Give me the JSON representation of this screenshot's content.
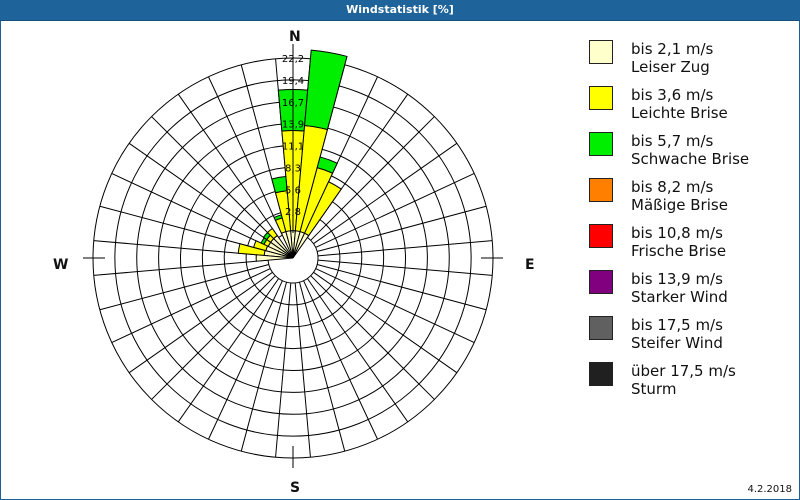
{
  "window": {
    "title": "Windstatistik [%]"
  },
  "compass": {
    "north": "N",
    "east": "E",
    "south": "S",
    "west": "W"
  },
  "footer": {
    "date": "4.2.2018"
  },
  "legend": {
    "items": [
      {
        "range": "bis 2,1 m/s",
        "name": "Leiser Zug",
        "color": "#ffffcc"
      },
      {
        "range": "bis 3,6 m/s",
        "name": "Leichte Brise",
        "color": "#ffff00"
      },
      {
        "range": "bis 5,7 m/s",
        "name": "Schwache Brise",
        "color": "#00ee00"
      },
      {
        "range": "bis 8,2 m/s",
        "name": "Mäßige Brise",
        "color": "#ff8000"
      },
      {
        "range": "bis 10,8 m/s",
        "name": "Frische Brise",
        "color": "#ff0000"
      },
      {
        "range": "bis 13,9 m/s",
        "name": "Starker Wind",
        "color": "#800080"
      },
      {
        "range": "bis 17,5 m/s",
        "name": "Steifer Wind",
        "color": "#606060"
      },
      {
        "range": "über 17,5 m/s",
        "name": "Sturm",
        "color": "#202020"
      }
    ]
  },
  "chart_data": {
    "type": "wind-rose (polar stacked bar)",
    "title": "Windstatistik [%]",
    "unit": "%",
    "radial_ticks": [
      2.8,
      5.6,
      8.3,
      11.1,
      13.9,
      16.7,
      19.4,
      22.2
    ],
    "radial_tick_labels": [
      "2,8",
      "5,6",
      "8,3",
      "11,1",
      "13,9",
      "16,7",
      "19,4",
      "22,2"
    ],
    "rmax": 22.2,
    "sector_width_deg": 10,
    "directions_deg_note": "direction angle measured clockwise from North; sector centered on angle",
    "series_names": [
      "bis 2,1 m/s",
      "bis 3,6 m/s",
      "bis 5,7 m/s",
      "bis 8,2 m/s",
      "bis 10,8 m/s",
      "bis 13,9 m/s",
      "bis 17,5 m/s",
      "über 17,5 m/s"
    ],
    "sectors": [
      {
        "dir": 0,
        "values": [
          0.3,
          12.7,
          5.2,
          0,
          0,
          0,
          0,
          0
        ]
      },
      {
        "dir": 10,
        "values": [
          0.3,
          13.4,
          9.6,
          0,
          0,
          0,
          0,
          0
        ]
      },
      {
        "dir": 20,
        "values": [
          0.3,
          8.4,
          1.4,
          0,
          0,
          0,
          0,
          0
        ]
      },
      {
        "dir": 30,
        "values": [
          0.3,
          7.2,
          0,
          0,
          0,
          0,
          0,
          0
        ]
      },
      {
        "dir": 340,
        "values": [
          0.3,
          1.8,
          0.4,
          0,
          0,
          0,
          0,
          0
        ]
      },
      {
        "dir": 350,
        "values": [
          0.3,
          5.1,
          1.8,
          0,
          0,
          0,
          0,
          0
        ]
      },
      {
        "dir": 320,
        "values": [
          0.3,
          1.1,
          0,
          0,
          0,
          0,
          0,
          0
        ]
      },
      {
        "dir": 310,
        "values": [
          0.3,
          0.6,
          0.5,
          0,
          0,
          0,
          0,
          0
        ]
      },
      {
        "dir": 300,
        "values": [
          0.3,
          0.6,
          0.4,
          0,
          0,
          0,
          0,
          0
        ]
      },
      {
        "dir": 290,
        "values": [
          0.4,
          1.6,
          0,
          0,
          0,
          0,
          0,
          0
        ]
      },
      {
        "dir": 280,
        "values": [
          0.5,
          3.3,
          0,
          0,
          0,
          0,
          0,
          0
        ]
      },
      {
        "dir": 270,
        "values": [
          1.5,
          0,
          0,
          0,
          0,
          0,
          0,
          0
        ]
      }
    ]
  }
}
